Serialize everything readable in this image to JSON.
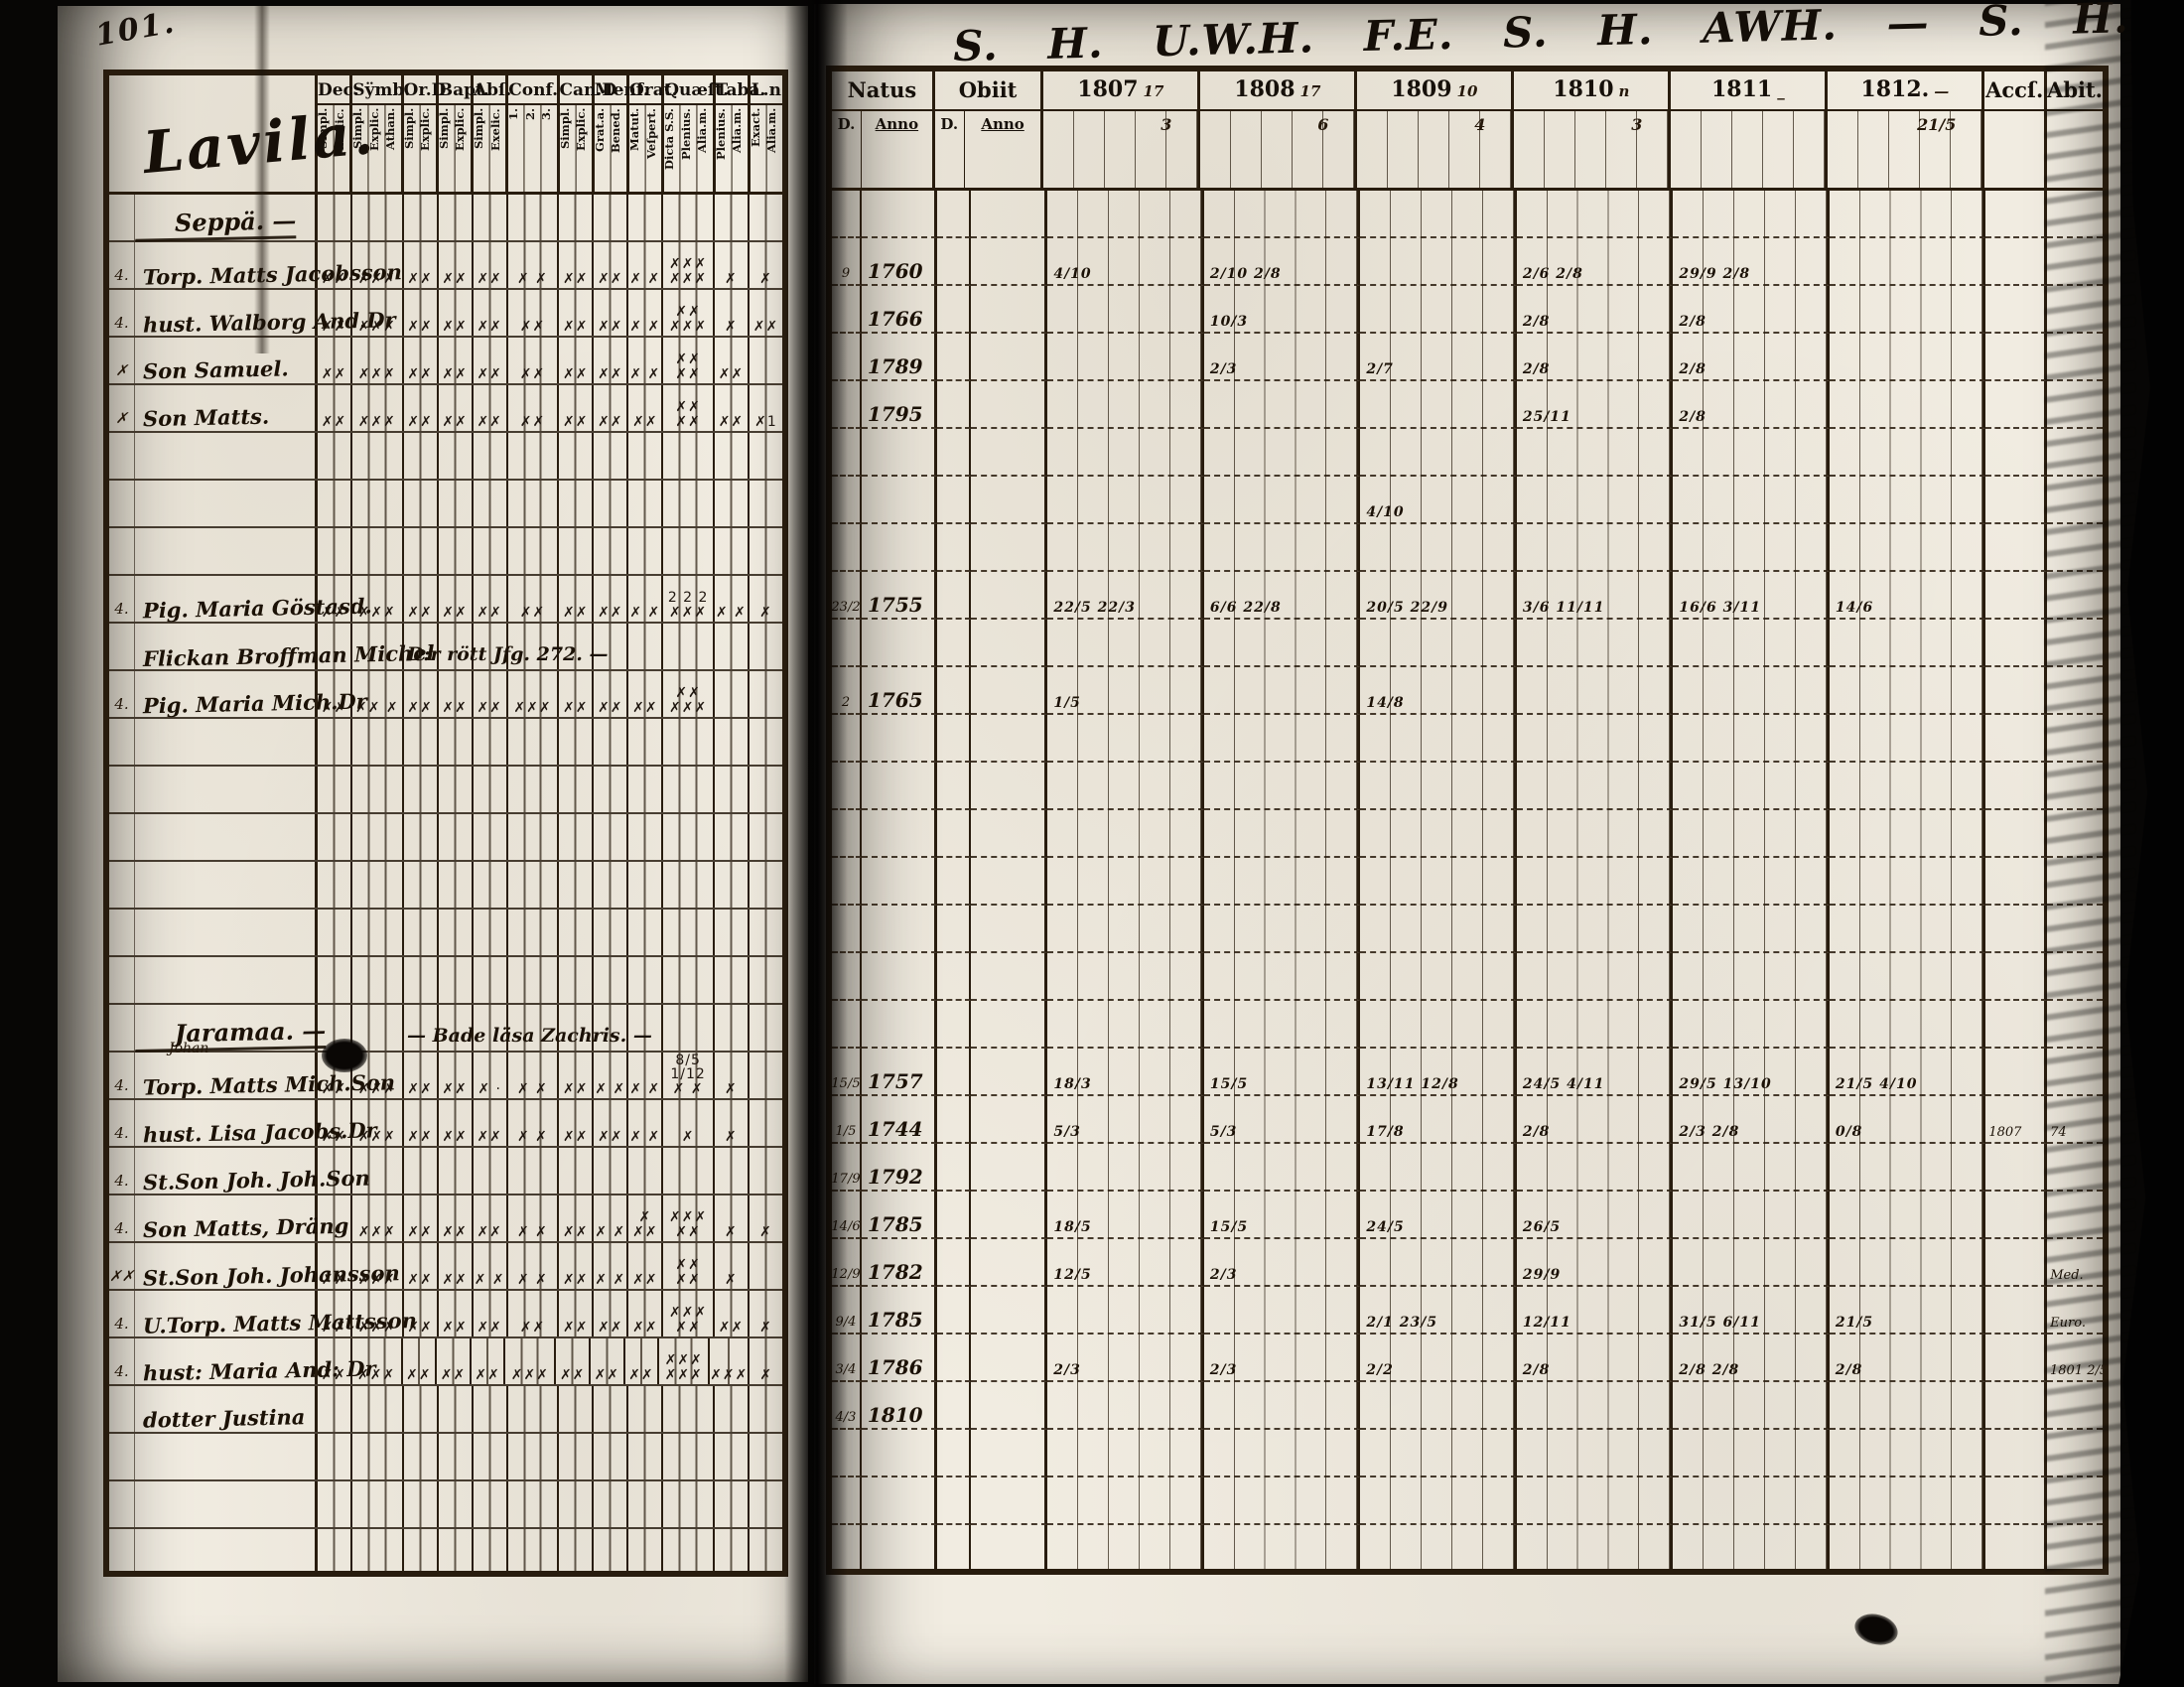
{
  "meta": {
    "page_number": "101.",
    "title": "Lavila.",
    "inscription": "S. H.   U.W.H.  F.E.  S. H.  AWH. — S. H.   ..y.."
  },
  "left": {
    "groups": [
      {
        "label": "Dec.",
        "subs": [
          "Simpl.",
          "Exelic."
        ]
      },
      {
        "label": "Sÿmb.",
        "subs": [
          "Simpl.",
          "Explic.",
          "Athan."
        ]
      },
      {
        "label": "Or.D",
        "subs": [
          "Simpl.",
          "Explic."
        ]
      },
      {
        "label": "Bapt.",
        "subs": [
          "Simpl.",
          "Explic."
        ]
      },
      {
        "label": "Abſ.",
        "subs": [
          "Simpl.",
          "Exelic."
        ]
      },
      {
        "label": "Conf.",
        "subs": [
          "1.",
          "2.",
          "3."
        ]
      },
      {
        "label": "Can.D",
        "subs": [
          "Simpl.",
          "Explic."
        ]
      },
      {
        "label": "Menſ.",
        "subs": [
          "Grat.a.",
          "Bened."
        ]
      },
      {
        "label": "Orat.",
        "subs": [
          "Matut.",
          "Veſpert."
        ]
      },
      {
        "label": "Quæſt.",
        "subs": [
          "Dicta S.S.",
          "Plenius.",
          "Alia.m."
        ]
      },
      {
        "label": "Taba.",
        "subs": [
          "Plenius.",
          "Alia.m."
        ]
      },
      {
        "label": "L.n",
        "subs": [
          "Exact.",
          "Alia.m."
        ]
      }
    ],
    "rows": [
      {
        "cls": "lrow sec",
        "rn": "",
        "name": "Seppä. —",
        "sup": "",
        "note": "",
        "marks": [
          "",
          "",
          "",
          "",
          "",
          "",
          "",
          "",
          "",
          "",
          "",
          ""
        ]
      },
      {
        "cls": "lrow",
        "rn": "4.",
        "name": "Torp. Matts Jacobsson",
        "sup": "",
        "note": "",
        "marks": [
          "✗✗",
          "✗✗✗",
          "✗✗",
          "✗✗",
          "✗✗",
          "✗ ✗",
          "✗✗",
          "✗✗",
          "✗ ✗",
          "✗✗✗\n✗✗✗",
          "✗",
          "✗"
        ]
      },
      {
        "cls": "lrow",
        "rn": "4.",
        "name": "hust. Walborg And.Dr",
        "sup": "",
        "note": "",
        "marks": [
          "✗✗",
          "✗✗✗",
          "✗✗",
          "✗✗",
          "✗✗",
          "✗✗",
          "✗✗",
          "✗✗",
          "✗ ✗",
          "✗✗\n✗✗✗",
          "✗",
          "✗✗"
        ]
      },
      {
        "cls": "lrow",
        "rn": "✗",
        "name": "Son Samuel.",
        "sup": "",
        "note": "",
        "marks": [
          "✗✗",
          "✗✗✗",
          "✗✗",
          "✗✗",
          "✗✗",
          "✗✗",
          "✗✗",
          "✗✗",
          "✗ ✗",
          "✗✗\n✗✗",
          "✗✗",
          ""
        ]
      },
      {
        "cls": "lrow",
        "rn": "✗",
        "name": "Son Matts.",
        "sup": "",
        "note": "",
        "marks": [
          "✗✗",
          "✗✗✗",
          "✗✗",
          "✗✗",
          "✗✗",
          "✗✗",
          "✗✗",
          "✗✗",
          "✗✗",
          "✗✗\n✗✗",
          "✗✗",
          "✗1"
        ]
      },
      {
        "cls": "lrow",
        "rn": "",
        "name": "",
        "sup": "",
        "note": "",
        "marks": [
          "",
          "",
          "",
          "",
          "",
          "",
          "",
          "",
          "",
          "",
          "",
          ""
        ]
      },
      {
        "cls": "lrow",
        "rn": "",
        "name": "",
        "sup": "",
        "note": "",
        "marks": [
          "",
          "",
          "",
          "",
          "",
          "",
          "",
          "",
          "",
          "",
          "",
          ""
        ]
      },
      {
        "cls": "lrow",
        "rn": "",
        "name": "",
        "sup": "",
        "note": "",
        "marks": [
          "",
          "",
          "",
          "",
          "",
          "",
          "",
          "",
          "",
          "",
          "",
          ""
        ]
      },
      {
        "cls": "lrow",
        "rn": "4.",
        "name": "Pig. Maria Göstasd.",
        "sup": "",
        "note": "",
        "marks": [
          "✗✗",
          "✗✗✗",
          "✗✗",
          "✗✗",
          "✗✗",
          "✗✗",
          "✗✗",
          "✗✗",
          "✗ ✗",
          "2 2 2\n✗✗✗",
          "✗ ✗",
          "✗"
        ]
      },
      {
        "cls": "lrow",
        "rn": "",
        "name": "Flickan Broffman Michel",
        "sup": "",
        "note": "D:r rött Jfg. 272. —",
        "marks": [
          "",
          "",
          "",
          "",
          "",
          "",
          "",
          "",
          "",
          "",
          "",
          ""
        ]
      },
      {
        "cls": "lrow",
        "rn": "4.",
        "name": "Pig. Maria Mich.Dr",
        "sup": "",
        "note": "",
        "marks": [
          "✗✗",
          "✗✗ ✗",
          "✗✗",
          "✗✗",
          "✗✗",
          "✗✗✗",
          "✗✗",
          "✗✗",
          "✗✗",
          "✗✗\n✗✗✗",
          "",
          ""
        ]
      },
      {
        "cls": "lrow",
        "rn": "",
        "name": "",
        "sup": "",
        "note": "",
        "marks": [
          "",
          "",
          "",
          "",
          "",
          "",
          "",
          "",
          "",
          "",
          "",
          ""
        ]
      },
      {
        "cls": "lrow",
        "rn": "",
        "name": "",
        "sup": "",
        "note": "",
        "marks": [
          "",
          "",
          "",
          "",
          "",
          "",
          "",
          "",
          "",
          "",
          "",
          ""
        ]
      },
      {
        "cls": "lrow",
        "rn": "",
        "name": "",
        "sup": "",
        "note": "",
        "marks": [
          "",
          "",
          "",
          "",
          "",
          "",
          "",
          "",
          "",
          "",
          "",
          ""
        ]
      },
      {
        "cls": "lrow",
        "rn": "",
        "name": "",
        "sup": "",
        "note": "",
        "marks": [
          "",
          "",
          "",
          "",
          "",
          "",
          "",
          "",
          "",
          "",
          "",
          ""
        ]
      },
      {
        "cls": "lrow",
        "rn": "",
        "name": "",
        "sup": "",
        "note": "",
        "marks": [
          "",
          "",
          "",
          "",
          "",
          "",
          "",
          "",
          "",
          "",
          "",
          ""
        ]
      },
      {
        "cls": "lrow",
        "rn": "",
        "name": "",
        "sup": "",
        "note": "",
        "marks": [
          "",
          "",
          "",
          "",
          "",
          "",
          "",
          "",
          "",
          "",
          "",
          ""
        ]
      },
      {
        "cls": "lrow sec",
        "rn": "",
        "name": "Jaramaa. —",
        "sup": "",
        "note": "— Bade läsa Zachris. —",
        "marks": [
          "",
          "",
          "",
          "",
          "",
          "",
          "",
          "",
          "",
          "",
          "",
          ""
        ]
      },
      {
        "cls": "lrow",
        "rn": "4.",
        "name": "Torp. Matts Mich.Son",
        "sup": "Johan",
        "note": "",
        "marks": [
          "✗✗",
          "✗✗✗",
          "✗✗",
          "✗✗",
          "✗ ·",
          "✗ ✗",
          "✗✗",
          "✗ ✗",
          "✗ ✗",
          "8/5 1/12\n✗ ✗",
          "✗",
          ""
        ]
      },
      {
        "cls": "lrow",
        "rn": "4.",
        "name": "hust. Lisa Jacobs.Dr",
        "sup": "",
        "note": "",
        "marks": [
          "✗✗",
          "✗✗✗",
          "✗✗",
          "✗✗",
          "✗✗",
          "✗ ✗",
          "✗✗",
          "✗✗",
          "✗ ✗",
          "✗",
          "✗",
          ""
        ]
      },
      {
        "cls": "lrow",
        "rn": "4.",
        "name": "St.Son Joh. Joh.Son",
        "sup": "",
        "note": "",
        "marks": [
          "",
          "",
          "",
          "",
          "",
          "",
          "",
          "",
          "",
          "",
          "",
          ""
        ]
      },
      {
        "cls": "lrow",
        "rn": "4.",
        "name": "Son Matts, Dräng",
        "sup": "",
        "note": "",
        "marks": [
          "",
          "✗✗✗",
          "✗✗",
          "✗✗",
          "✗✗",
          "✗ ✗",
          "✗✗",
          "✗ ✗",
          "✗ ✗✗",
          "✗✗✗\n✗✗",
          "✗",
          "✗"
        ]
      },
      {
        "cls": "lrow",
        "rn": "✗✗",
        "name": "St.Son Joh. Johansson",
        "sup": "",
        "note": "",
        "marks": [
          "✗✗",
          "✗✗✗",
          "✗✗",
          "✗✗",
          "✗ ✗",
          "✗ ✗",
          "✗✗",
          "✗ ✗",
          "✗✗",
          "✗✗\n✗✗",
          "✗",
          ""
        ]
      },
      {
        "cls": "lrow",
        "rn": "4.",
        "name": "U.Torp. Matts Mattsson",
        "sup": "",
        "note": "",
        "marks": [
          "✗✗",
          "✗✗✗",
          "✗✗",
          "✗✗",
          "✗✗",
          "✗✗",
          "✗✗",
          "✗✗",
          "✗✗",
          "✗✗✗\n✗✗",
          "✗✗",
          "✗"
        ]
      },
      {
        "cls": "lrow",
        "rn": "4.",
        "name": "hust: Maria And: Dr",
        "sup": "",
        "note": "",
        "marks": [
          "✗✗",
          "✗✗✗",
          "✗✗",
          "✗✗",
          "✗✗",
          "✗✗✗",
          "✗✗",
          "✗✗",
          "✗✗",
          "✗✗✗\n✗✗✗",
          "✗✗✗",
          "✗"
        ]
      },
      {
        "cls": "lrow",
        "rn": "",
        "name": "dotter Justina",
        "sup": "",
        "note": "",
        "marks": [
          "",
          "",
          "",
          "",
          "",
          "",
          "",
          "",
          "",
          "",
          "",
          ""
        ]
      },
      {
        "cls": "lrow",
        "rn": "",
        "name": "",
        "sup": "",
        "note": "",
        "marks": [
          "",
          "",
          "",
          "",
          "",
          "",
          "",
          "",
          "",
          "",
          "",
          ""
        ]
      },
      {
        "cls": "lrow",
        "rn": "",
        "name": "",
        "sup": "",
        "note": "",
        "marks": [
          "",
          "",
          "",
          "",
          "",
          "",
          "",
          "",
          "",
          "",
          "",
          ""
        ]
      },
      {
        "cls": "lrow",
        "rn": "",
        "name": "",
        "sup": "",
        "note": "",
        "marks": [
          "",
          "",
          "",
          "",
          "",
          "",
          "",
          "",
          "",
          "",
          "",
          ""
        ]
      }
    ]
  },
  "right": {
    "natus_label": "Natus",
    "obiit_label": "Obiit",
    "acc_label": "Accſ.",
    "abit_label": "Abit.",
    "sub_d": "D.",
    "sub_anno": "Anno",
    "years": [
      {
        "label": "1807",
        "note": "17",
        "sub": "3"
      },
      {
        "label": "1808",
        "note": "17",
        "sub": "6"
      },
      {
        "label": "1809",
        "note": "10",
        "sub": "4"
      },
      {
        "label": "1810",
        "note": "n",
        "sub": "3"
      },
      {
        "label": "1811",
        "note": "_",
        "sub": ""
      },
      {
        "label": "1812.",
        "note": "—",
        "sub": "21/5"
      }
    ],
    "rows": [
      {
        "d": "",
        "natus": "",
        "od": "",
        "oanno": "",
        "y": [
          "",
          "",
          "",
          "",
          "",
          ""
        ],
        "acc": "",
        "abit": ""
      },
      {
        "d": "9",
        "natus": "1760",
        "od": "",
        "oanno": "",
        "y": [
          "4/10",
          "2/10 2/8",
          "",
          "2/6 2/8",
          "29/9 2/8",
          ""
        ],
        "acc": "",
        "abit": ""
      },
      {
        "d": "",
        "natus": "1766",
        "od": "",
        "oanno": "",
        "y": [
          "",
          "10/3",
          "",
          "2/8",
          "2/8",
          ""
        ],
        "acc": "",
        "abit": ""
      },
      {
        "d": "",
        "natus": "1789",
        "od": "",
        "oanno": "",
        "y": [
          "",
          "2/3",
          "2/7",
          "2/8",
          "2/8",
          ""
        ],
        "acc": "",
        "abit": ""
      },
      {
        "d": "",
        "natus": "1795",
        "od": "",
        "oanno": "",
        "y": [
          "",
          "",
          "",
          "25/11",
          "2/8",
          ""
        ],
        "acc": "",
        "abit": ""
      },
      {
        "d": "",
        "natus": "",
        "od": "",
        "oanno": "",
        "y": [
          "",
          "",
          "",
          "",
          "",
          ""
        ],
        "acc": "",
        "abit": ""
      },
      {
        "d": "",
        "natus": "",
        "od": "",
        "oanno": "",
        "y": [
          "",
          "",
          "4/10",
          "",
          "",
          ""
        ],
        "acc": "",
        "abit": ""
      },
      {
        "d": "",
        "natus": "",
        "od": "",
        "oanno": "",
        "y": [
          "",
          "",
          "",
          "",
          "",
          ""
        ],
        "acc": "",
        "abit": ""
      },
      {
        "d": "23/2",
        "natus": "1755",
        "od": "",
        "oanno": "",
        "y": [
          "22/5 22/3",
          "6/6 22/8",
          "20/5 22/9",
          "3/6 11/11",
          "16/6 3/11",
          "14/6"
        ],
        "acc": "",
        "abit": ""
      },
      {
        "d": "",
        "natus": "",
        "od": "",
        "oanno": "",
        "y": [
          "",
          "",
          "",
          "",
          "",
          ""
        ],
        "acc": "",
        "abit": ""
      },
      {
        "d": "2",
        "natus": "1765",
        "od": "",
        "oanno": "",
        "y": [
          "1/5",
          "",
          "14/8",
          "",
          "",
          ""
        ],
        "acc": "",
        "abit": ""
      },
      {
        "d": "",
        "natus": "",
        "od": "",
        "oanno": "",
        "y": [
          "",
          "",
          "",
          "",
          "",
          ""
        ],
        "acc": "",
        "abit": ""
      },
      {
        "d": "",
        "natus": "",
        "od": "",
        "oanno": "",
        "y": [
          "",
          "",
          "",
          "",
          "",
          ""
        ],
        "acc": "",
        "abit": ""
      },
      {
        "d": "",
        "natus": "",
        "od": "",
        "oanno": "",
        "y": [
          "",
          "",
          "",
          "",
          "",
          ""
        ],
        "acc": "",
        "abit": ""
      },
      {
        "d": "",
        "natus": "",
        "od": "",
        "oanno": "",
        "y": [
          "",
          "",
          "",
          "",
          "",
          ""
        ],
        "acc": "",
        "abit": ""
      },
      {
        "d": "",
        "natus": "",
        "od": "",
        "oanno": "",
        "y": [
          "",
          "",
          "",
          "",
          "",
          ""
        ],
        "acc": "",
        "abit": ""
      },
      {
        "d": "",
        "natus": "",
        "od": "",
        "oanno": "",
        "y": [
          "",
          "",
          "",
          "",
          "",
          ""
        ],
        "acc": "",
        "abit": ""
      },
      {
        "d": "",
        "natus": "",
        "od": "",
        "oanno": "",
        "y": [
          "",
          "",
          "",
          "",
          "",
          ""
        ],
        "acc": "",
        "abit": ""
      },
      {
        "d": "15/5",
        "natus": "1757",
        "od": "",
        "oanno": "",
        "y": [
          "18/3",
          "15/5",
          "13/11 12/8",
          "24/5 4/11",
          "29/5 13/10",
          "21/5 4/10"
        ],
        "acc": "",
        "abit": ""
      },
      {
        "d": "1/5",
        "natus": "1744",
        "od": "",
        "oanno": "",
        "y": [
          "5/3",
          "5/3",
          "17/8",
          "2/8",
          "2/3 2/8",
          "0/8"
        ],
        "acc": "1807",
        "abit": "74"
      },
      {
        "d": "17/9",
        "natus": "1792",
        "od": "",
        "oanno": "",
        "y": [
          "",
          "",
          "",
          "",
          "",
          ""
        ],
        "acc": "",
        "abit": ""
      },
      {
        "d": "14/6",
        "natus": "1785",
        "od": "",
        "oanno": "",
        "y": [
          "18/5",
          "15/5",
          "24/5",
          "26/5",
          "",
          ""
        ],
        "acc": "",
        "abit": ""
      },
      {
        "d": "12/9",
        "natus": "1782",
        "od": "",
        "oanno": "",
        "y": [
          "12/5",
          "2/3",
          "",
          "29/9",
          "",
          ""
        ],
        "acc": "",
        "abit": "Med."
      },
      {
        "d": "9/4",
        "natus": "1785",
        "od": "",
        "oanno": "",
        "y": [
          "",
          "",
          "2/1 23/5",
          "12/11",
          "31/5 6/11",
          "21/5"
        ],
        "acc": "",
        "abit": "Euro."
      },
      {
        "d": "3/4",
        "natus": "1786",
        "od": "",
        "oanno": "",
        "y": [
          "2/3",
          "2/3",
          "2/2",
          "2/8",
          "2/8 2/8",
          "2/8"
        ],
        "acc": "",
        "abit": "1801 2/5"
      },
      {
        "d": "4/3",
        "natus": "1810",
        "od": "",
        "oanno": "",
        "y": [
          "",
          "",
          "",
          "",
          "",
          ""
        ],
        "acc": "",
        "abit": ""
      },
      {
        "d": "",
        "natus": "",
        "od": "",
        "oanno": "",
        "y": [
          "",
          "",
          "",
          "",
          "",
          ""
        ],
        "acc": "",
        "abit": ""
      },
      {
        "d": "",
        "natus": "",
        "od": "",
        "oanno": "",
        "y": [
          "",
          "",
          "",
          "",
          "",
          ""
        ],
        "acc": "",
        "abit": ""
      },
      {
        "d": "",
        "natus": "",
        "od": "",
        "oanno": "",
        "y": [
          "",
          "",
          "",
          "",
          "",
          ""
        ],
        "acc": "",
        "abit": ""
      }
    ]
  }
}
